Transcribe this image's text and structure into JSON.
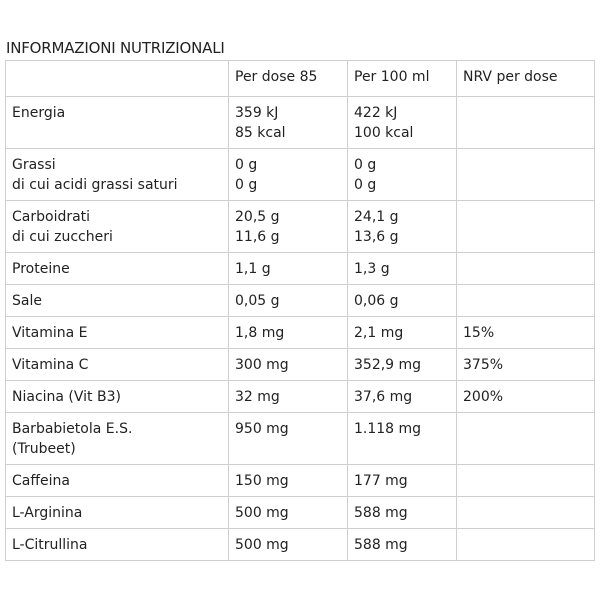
{
  "title": "INFORMAZIONI NUTRIZIONALI",
  "headers": [
    "",
    "Per dose 85",
    "Per 100 ml",
    "NRV per dose"
  ],
  "rows": [
    {
      "name": [
        "Energia"
      ],
      "dose": [
        "359 kJ",
        "85 kcal"
      ],
      "per100": [
        "422 kJ",
        "100 kcal"
      ],
      "nrv": []
    },
    {
      "name": [
        "Grassi",
        "di cui acidi grassi saturi"
      ],
      "dose": [
        "0 g",
        "0 g"
      ],
      "per100": [
        "0 g",
        "0 g"
      ],
      "nrv": []
    },
    {
      "name": [
        "Carboidrati",
        "di cui zuccheri"
      ],
      "dose": [
        "20,5 g",
        "11,6 g"
      ],
      "per100": [
        "24,1 g",
        "13,6 g"
      ],
      "nrv": []
    },
    {
      "name": [
        "Proteine"
      ],
      "dose": [
        "1,1 g"
      ],
      "per100": [
        "1,3 g"
      ],
      "nrv": []
    },
    {
      "name": [
        "Sale"
      ],
      "dose": [
        "0,05 g"
      ],
      "per100": [
        "0,06 g"
      ],
      "nrv": []
    },
    {
      "name": [
        "Vitamina E"
      ],
      "dose": [
        "1,8 mg"
      ],
      "per100": [
        "2,1 mg"
      ],
      "nrv": [
        "15%"
      ]
    },
    {
      "name": [
        "Vitamina C"
      ],
      "dose": [
        "300 mg"
      ],
      "per100": [
        "352,9 mg"
      ],
      "nrv": [
        "375%"
      ]
    },
    {
      "name": [
        "Niacina (Vit B3)"
      ],
      "dose": [
        "32 mg"
      ],
      "per100": [
        "37,6 mg"
      ],
      "nrv": [
        "200%"
      ]
    },
    {
      "name": [
        "Barbabietola E.S.",
        "(Trubeet)"
      ],
      "dose": [
        "950 mg"
      ],
      "per100": [
        "1.118 mg"
      ],
      "nrv": []
    },
    {
      "name": [
        "Caffeina"
      ],
      "dose": [
        "150 mg"
      ],
      "per100": [
        "177 mg"
      ],
      "nrv": []
    },
    {
      "name": [
        "L-Arginina"
      ],
      "dose": [
        "500 mg"
      ],
      "per100": [
        "588 mg"
      ],
      "nrv": []
    },
    {
      "name": [
        "L-Citrullina"
      ],
      "dose": [
        "500 mg"
      ],
      "per100": [
        "588 mg"
      ],
      "nrv": []
    }
  ]
}
